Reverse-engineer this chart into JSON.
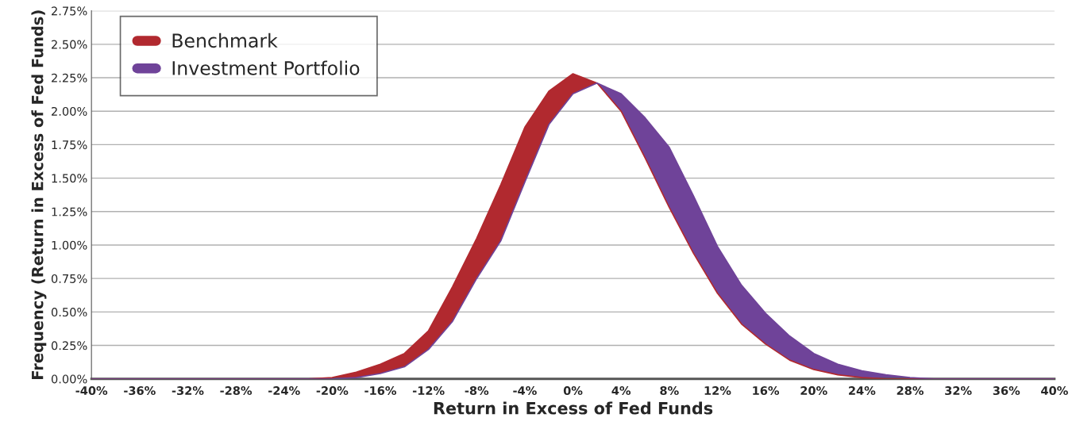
{
  "chart_data": {
    "type": "line",
    "xlabel": "Return in Excess of Fed Funds",
    "ylabel": "Frequency (Return in Excess of Fed Funds)",
    "series": [
      {
        "name": "Benchmark",
        "color": "#b1292f",
        "values": [
          0,
          0,
          0,
          0.01,
          0.05,
          0.11,
          0.19,
          0.36,
          0.69,
          1.05,
          1.45,
          1.88,
          2.15,
          2.28,
          2.21,
          2.0,
          1.65,
          1.28,
          0.94,
          0.64,
          0.41,
          0.26,
          0.14,
          0.07,
          0.03,
          0.01,
          0,
          0,
          0,
          0
        ],
        "lower": [
          null,
          null,
          null,
          0,
          0.01,
          0.04,
          0.09,
          0.22,
          0.43,
          0.75,
          1.03,
          1.47,
          1.9,
          2.13,
          2.21,
          null,
          null,
          null,
          null,
          null,
          null,
          null,
          null,
          null,
          null,
          null,
          null,
          null,
          null,
          null
        ],
        "upper": [
          null,
          null,
          null,
          0.01,
          0.05,
          0.11,
          0.19,
          0.36,
          0.69,
          1.05,
          1.45,
          1.88,
          2.15,
          2.28,
          2.21,
          null,
          null,
          null,
          null,
          null,
          null,
          null,
          null,
          null,
          null,
          null,
          null,
          null,
          null,
          null
        ]
      },
      {
        "name": "Investment Portfolio",
        "color": "#6f4399",
        "values": [
          0,
          0,
          0,
          0,
          0.01,
          0.04,
          0.09,
          0.22,
          0.43,
          0.75,
          1.03,
          1.47,
          1.9,
          2.13,
          2.21,
          2.13,
          1.95,
          1.73,
          1.37,
          0.99,
          0.7,
          0.49,
          0.32,
          0.19,
          0.11,
          0.06,
          0.03,
          0.01,
          0,
          0
        ],
        "lower": [
          null,
          null,
          null,
          null,
          null,
          null,
          null,
          null,
          null,
          null,
          null,
          null,
          null,
          null,
          2.21,
          2.0,
          1.65,
          1.28,
          0.94,
          0.64,
          0.41,
          0.26,
          0.14,
          0.07,
          0.03,
          0.01,
          0,
          0,
          null,
          null
        ],
        "upper": [
          null,
          null,
          null,
          null,
          null,
          null,
          null,
          null,
          null,
          null,
          null,
          null,
          null,
          null,
          2.21,
          2.13,
          1.95,
          1.73,
          1.37,
          0.99,
          0.7,
          0.49,
          0.32,
          0.19,
          0.11,
          0.06,
          0.03,
          0.01,
          null,
          null
        ]
      }
    ],
    "x": [
      -40,
      -24,
      -22,
      -20,
      -18,
      -16,
      -14,
      -12,
      -10,
      -8,
      -6,
      -4,
      -2,
      0,
      2,
      4,
      6,
      8,
      10,
      12,
      14,
      16,
      18,
      20,
      22,
      24,
      26,
      28,
      30,
      40
    ],
    "xlim": [
      -40,
      40
    ],
    "xticks": [
      {
        "value": -40,
        "label": "-40%"
      },
      {
        "value": -36,
        "label": "-36%"
      },
      {
        "value": -32,
        "label": "-32%"
      },
      {
        "value": -28,
        "label": "-28%"
      },
      {
        "value": -24,
        "label": "-24%"
      },
      {
        "value": -20,
        "label": "-20%"
      },
      {
        "value": -16,
        "label": "-16%"
      },
      {
        "value": -12,
        "label": "-12%"
      },
      {
        "value": -8,
        "label": "-8%"
      },
      {
        "value": -4,
        "label": "-4%"
      },
      {
        "value": 0,
        "label": "0%"
      },
      {
        "value": 4,
        "label": "4%"
      },
      {
        "value": 8,
        "label": "8%"
      },
      {
        "value": 12,
        "label": "12%"
      },
      {
        "value": 16,
        "label": "16%"
      },
      {
        "value": 20,
        "label": "20%"
      },
      {
        "value": 24,
        "label": "24%"
      },
      {
        "value": 28,
        "label": "28%"
      },
      {
        "value": 32,
        "label": "32%"
      },
      {
        "value": 36,
        "label": "36%"
      },
      {
        "value": 40,
        "label": "40%"
      }
    ],
    "ylim": [
      0,
      2.75
    ],
    "yticks": [
      {
        "value": 0,
        "label": "0.00%"
      },
      {
        "value": 0.25,
        "label": "0.25%"
      },
      {
        "value": 0.5,
        "label": "0.50%"
      },
      {
        "value": 0.75,
        "label": "0.75%"
      },
      {
        "value": 1,
        "label": "1.00%"
      },
      {
        "value": 1.25,
        "label": "1.25%"
      },
      {
        "value": 1.5,
        "label": "1.50%"
      },
      {
        "value": 1.75,
        "label": "1.75%"
      },
      {
        "value": 2,
        "label": "2.00%"
      },
      {
        "value": 2.25,
        "label": "2.25%"
      },
      {
        "value": 2.5,
        "label": "2.50%"
      },
      {
        "value": 2.75,
        "label": "2.75%"
      }
    ],
    "grid": "y",
    "legend": "top left",
    "marker": "none",
    "line_style": "solid"
  }
}
